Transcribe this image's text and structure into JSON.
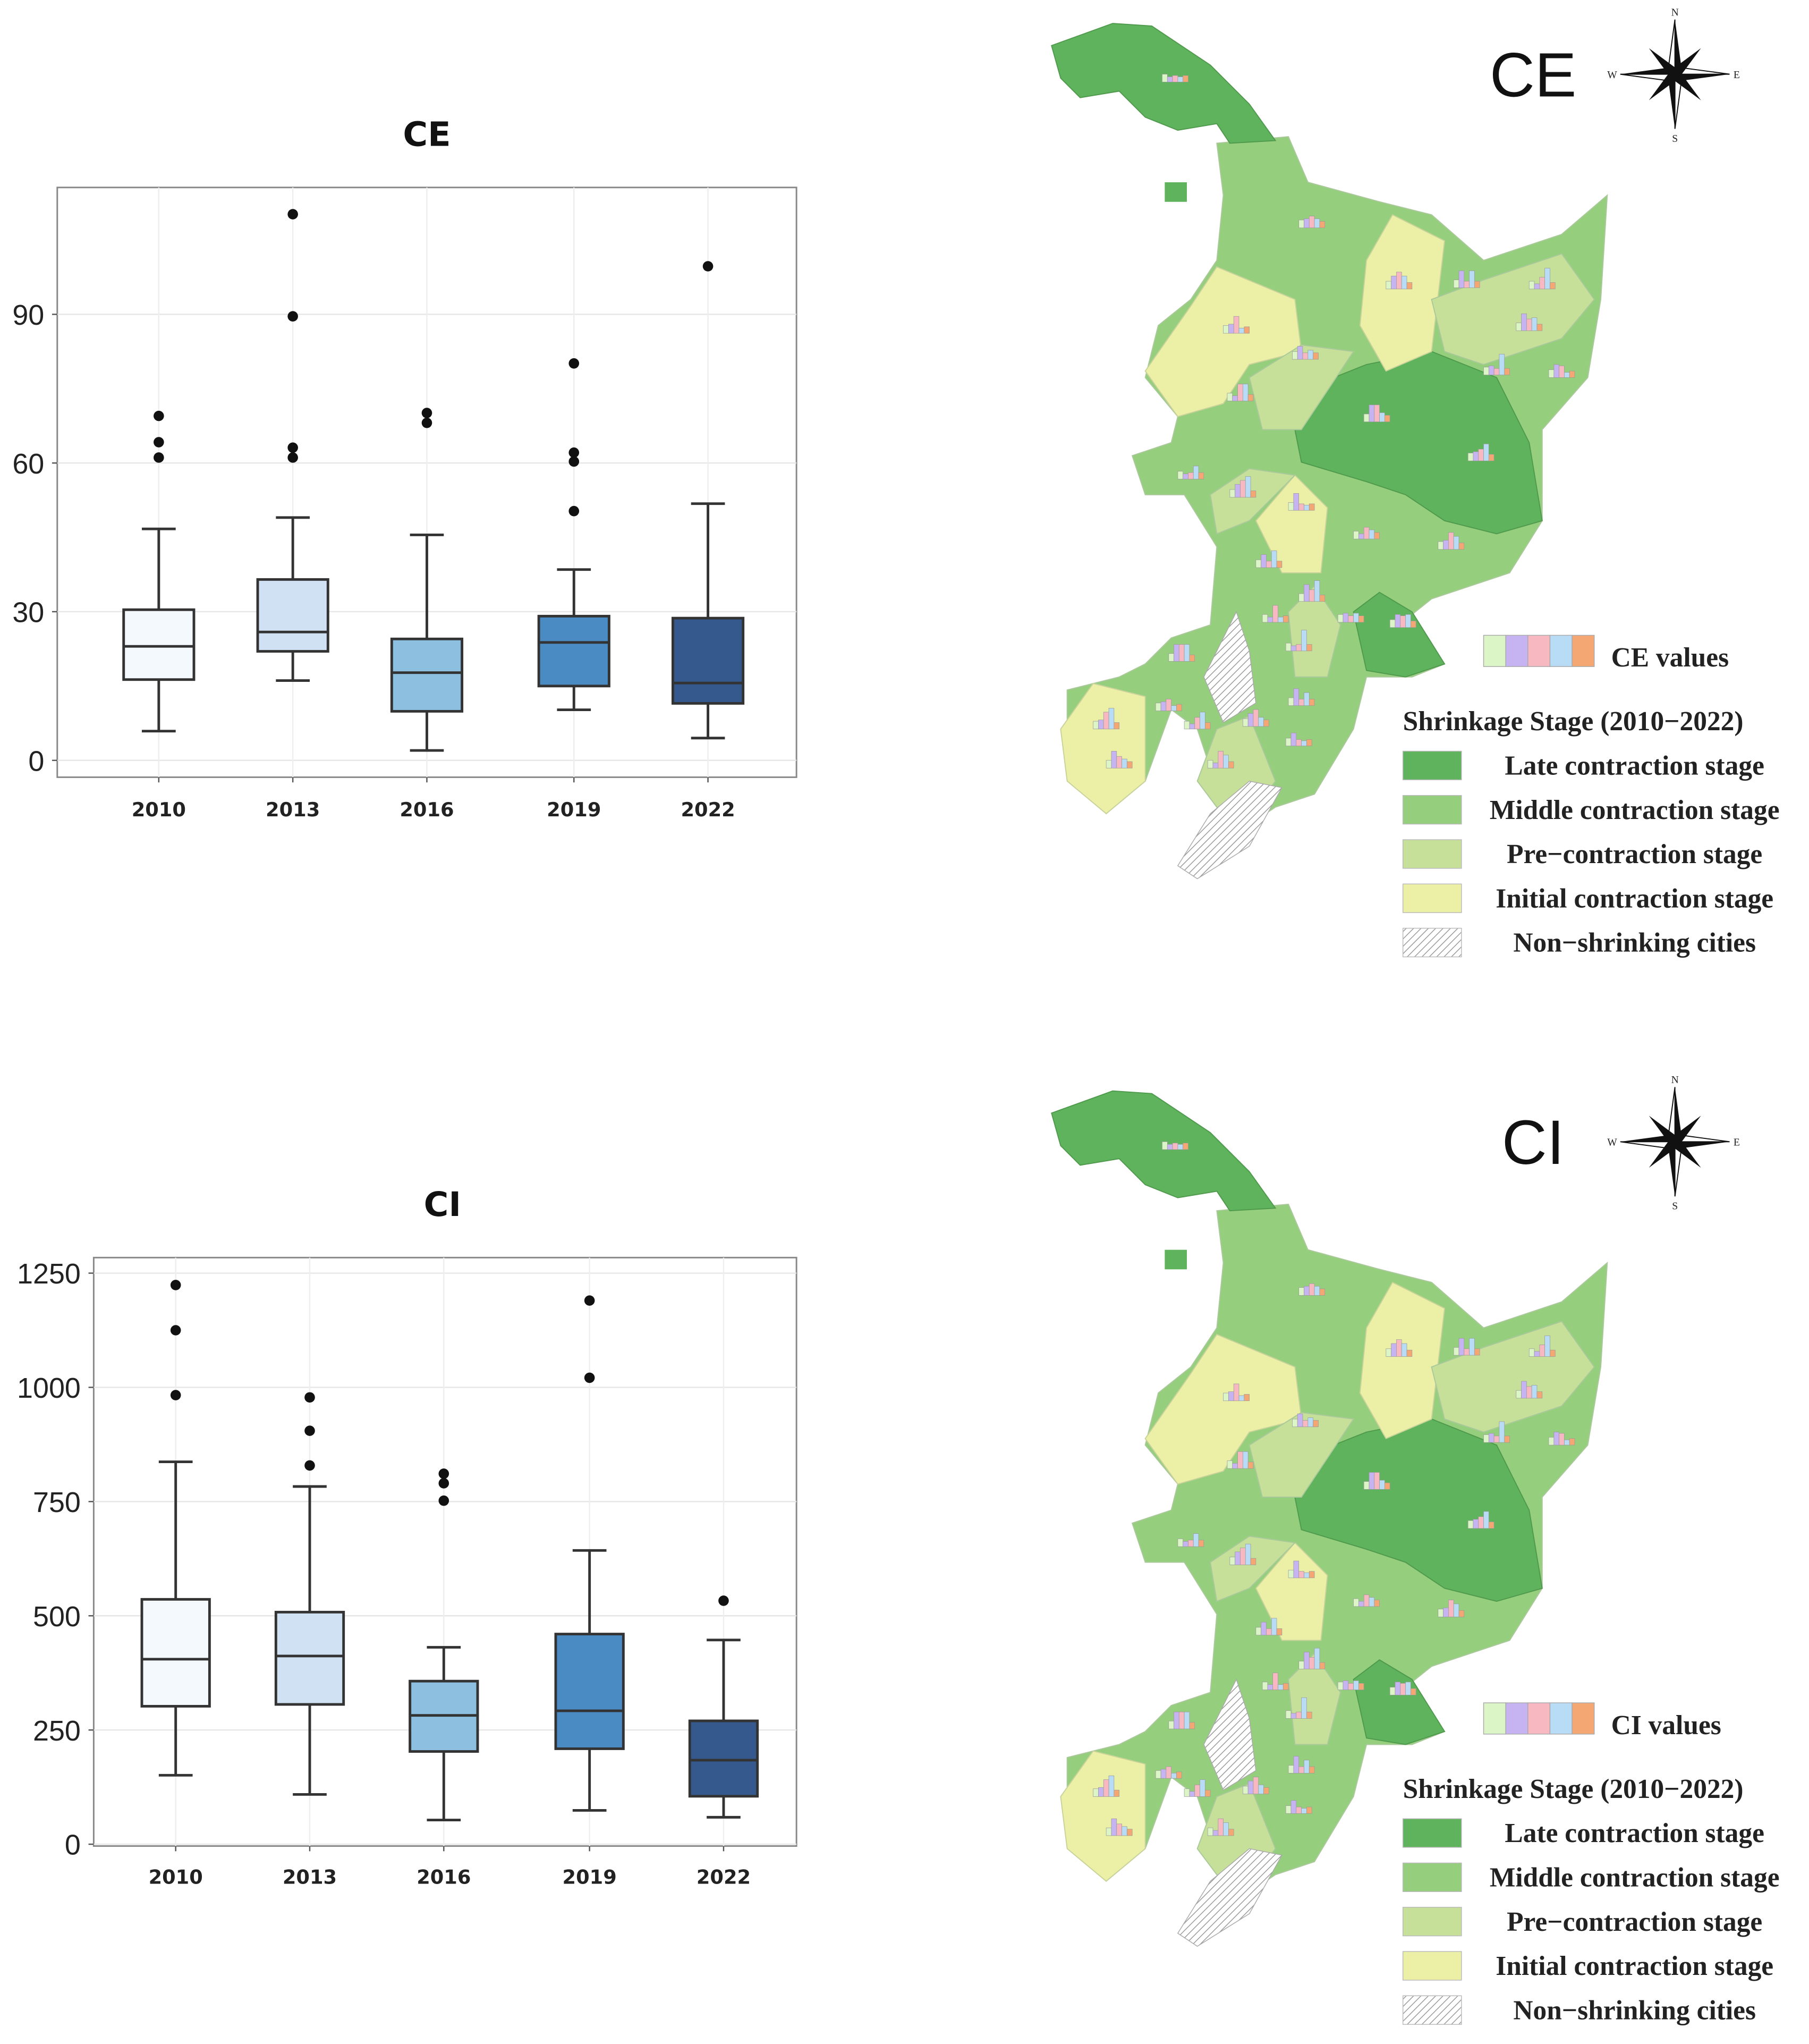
{
  "chart_data": [
    {
      "type": "box",
      "title": "CE",
      "categories": [
        "2010",
        "2013",
        "2016",
        "2019",
        "2022"
      ],
      "yticks": [
        0,
        30,
        60,
        90
      ],
      "ylim": [
        -3.4,
        115.6
      ],
      "grid": true,
      "fill_colors": [
        "#f4f9fe",
        "#cfe1f2",
        "#8cbfe0",
        "#4a8bc4",
        "#35598c"
      ],
      "boxes": [
        {
          "whisker_low": 5.9,
          "q1": 16.3,
          "median": 23.0,
          "q3": 30.4,
          "whisker_high": 46.7,
          "outliers": [
            69.5,
            64.2,
            61.1
          ]
        },
        {
          "whisker_low": 16.1,
          "q1": 22.0,
          "median": 25.9,
          "q3": 36.5,
          "whisker_high": 49.0,
          "outliers": [
            110.2,
            89.6,
            63.1,
            61.1
          ]
        },
        {
          "whisker_low": 2.0,
          "q1": 9.9,
          "median": 17.7,
          "q3": 24.5,
          "whisker_high": 45.5,
          "outliers": [
            70.1,
            68.1
          ]
        },
        {
          "whisker_low": 10.2,
          "q1": 15.0,
          "median": 23.8,
          "q3": 29.1,
          "whisker_high": 38.5,
          "outliers": [
            80.1,
            62.1,
            60.3,
            50.3
          ]
        },
        {
          "whisker_low": 4.5,
          "q1": 11.5,
          "median": 15.6,
          "q3": 28.7,
          "whisker_high": 51.8,
          "outliers": [
            99.7
          ]
        }
      ]
    },
    {
      "type": "box",
      "title": "CI",
      "categories": [
        "2010",
        "2013",
        "2016",
        "2019",
        "2022"
      ],
      "yticks": [
        0,
        250,
        500,
        750,
        1000,
        1250
      ],
      "ylim": [
        -4,
        1284
      ],
      "grid": true,
      "fill_colors": [
        "#f4f9fe",
        "#cfe1f2",
        "#8cbfe0",
        "#4a8bc4",
        "#35598c"
      ],
      "boxes": [
        {
          "whisker_low": 151,
          "q1": 302,
          "median": 405,
          "q3": 536,
          "whisker_high": 837,
          "outliers": [
            1224,
            1125,
            983
          ]
        },
        {
          "whisker_low": 109,
          "q1": 306,
          "median": 412,
          "q3": 508,
          "whisker_high": 783,
          "outliers": [
            978,
            905,
            829
          ]
        },
        {
          "whisker_low": 53,
          "q1": 203,
          "median": 282,
          "q3": 357,
          "whisker_high": 431,
          "outliers": [
            811,
            790,
            752
          ]
        },
        {
          "whisker_low": 74,
          "q1": 209,
          "median": 292,
          "q3": 460,
          "whisker_high": 643,
          "outliers": [
            1190,
            1021
          ]
        },
        {
          "whisker_low": 59,
          "q1": 105,
          "median": 184,
          "q3": 270,
          "whisker_high": 447,
          "outliers": [
            533
          ]
        }
      ]
    }
  ],
  "maps": [
    {
      "title": "CE",
      "bar_legend_label": "CE values",
      "legend_title": "Shrinkage Stage (2010−2022)",
      "legend_items": [
        "Late contraction stage",
        "Middle contraction stage",
        "Pre−contraction stage",
        "Initial contraction stage",
        "Non−shrinking cities"
      ]
    },
    {
      "title": "CI",
      "bar_legend_label": "CI values",
      "legend_title": "Shrinkage Stage (2010−2022)",
      "legend_items": [
        "Late contraction stage",
        "Middle contraction stage",
        "Pre−contraction stage",
        "Initial contraction stage",
        "Non−shrinking cities"
      ]
    }
  ],
  "compass": {
    "n": "N",
    "s": "S",
    "e": "E",
    "w": "W"
  },
  "colors": {
    "late": "#5fb35d",
    "middle": "#95cf7d",
    "pre": "#c6e09a",
    "initial": "#ebf0a6",
    "bar_series": [
      "#dcf5c6",
      "#c6b3f2",
      "#f7b8c2",
      "#b8dcf5",
      "#f4a673"
    ]
  }
}
